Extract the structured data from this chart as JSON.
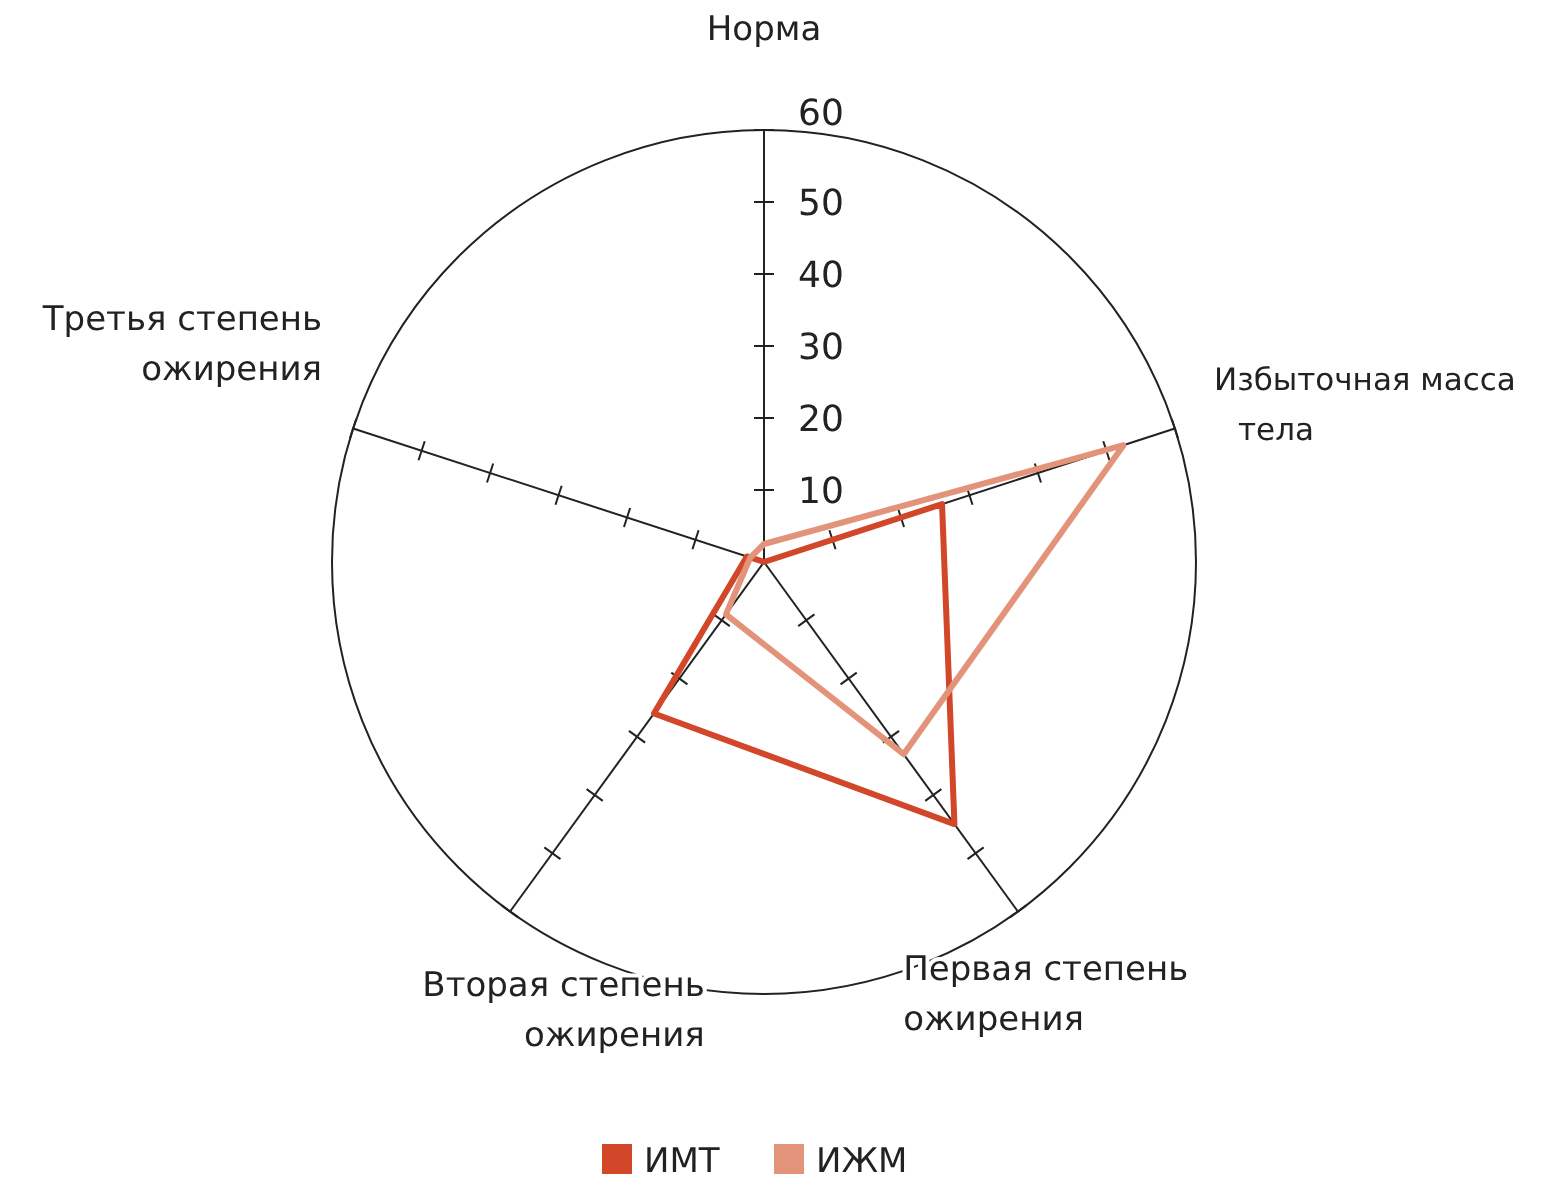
{
  "chart_data": {
    "type": "radar",
    "categories": [
      "Норма",
      "Избыточная масса тела",
      "Первая степень ожирения",
      "Вторая степень ожирения",
      "Третья степень ожирения"
    ],
    "series": [
      {
        "name": "ИМТ",
        "color": "#d2472a",
        "values": [
          0,
          26,
          45,
          26,
          2.5
        ]
      },
      {
        "name": "ИЖМ",
        "color": "#e3937a",
        "values": [
          2.5,
          52.5,
          33,
          9,
          2
        ]
      }
    ],
    "ylim": [
      0,
      60
    ],
    "yticks": [
      10,
      20,
      30,
      40,
      50,
      60
    ],
    "legend": "bottom"
  }
}
